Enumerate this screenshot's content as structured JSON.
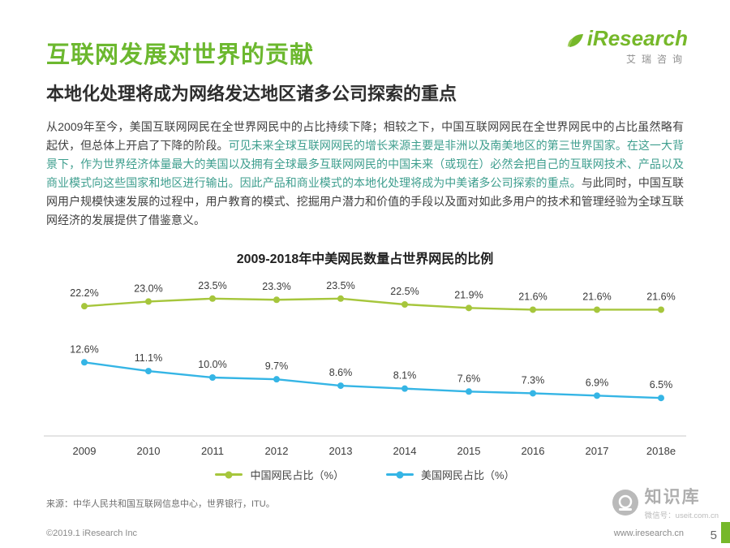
{
  "page": {
    "title": "互联网发展对世界的贡献",
    "subtitle": "本地化处理将成为网络发达地区诸多公司探索的重点",
    "logo": {
      "brand": "iResearch",
      "brand_cn": "艾瑞咨询"
    },
    "paragraph": {
      "seg1": "从2009年至今，美国互联网网民在全世界网民中的占比持续下降；相较之下，中国互联网网民在全世界网民中的占比虽然略有起伏，但总体上开启了下降的阶段。",
      "seg2_highlight": "可见未来全球互联网网民的增长来源主要是非洲以及南美地区的第三世界国家。在这一大背景下，作为世界经济体量最大的美国以及拥有全球最多互联网网民的中国未来（或现在）必然会把自己的互联网技术、产品以及商业模式向这些国家和地区进行输出。因此产品和商业模式的本地化处理将成为中美诸多公司探索的重点。",
      "seg3": "与此同时，中国互联网用户规模快速发展的过程中，用户教育的模式、挖掘用户潜力和价值的手段以及面对如此多用户的技术和管理经验为全球互联网经济的发展提供了借鉴意义。"
    },
    "source_note": "来源：中华人民共和国互联网信息中心，世界银行，ITU。",
    "footer": {
      "copyright": "©2019.1 iResearch Inc",
      "website": "www.iresearch.cn",
      "page_number": "5"
    },
    "watermark": {
      "name": "知识库",
      "wechat": "微信号：useit.com.cn"
    },
    "colors": {
      "brand_green": "#76b82a",
      "highlight_teal": "#3e9e8e"
    }
  },
  "chart_data": {
    "type": "line",
    "title": "2009-2018年中美网民数量占世界网民的比例",
    "categories": [
      "2009",
      "2010",
      "2011",
      "2012",
      "2013",
      "2014",
      "2015",
      "2016",
      "2017",
      "2018e"
    ],
    "series": [
      {
        "name": "中国网民占比（%）",
        "color": "#a6c63c",
        "values": [
          22.2,
          23.0,
          23.5,
          23.3,
          23.5,
          22.5,
          21.9,
          21.6,
          21.6,
          21.6
        ]
      },
      {
        "name": "美国网民占比（%）",
        "color": "#35b5e5",
        "values": [
          12.6,
          11.1,
          10.0,
          9.7,
          8.6,
          8.1,
          7.6,
          7.3,
          6.9,
          6.5
        ]
      }
    ],
    "ylim": [
      0,
      30
    ],
    "grid": false,
    "legend_position": "bottom",
    "xlabel": "",
    "ylabel": ""
  }
}
